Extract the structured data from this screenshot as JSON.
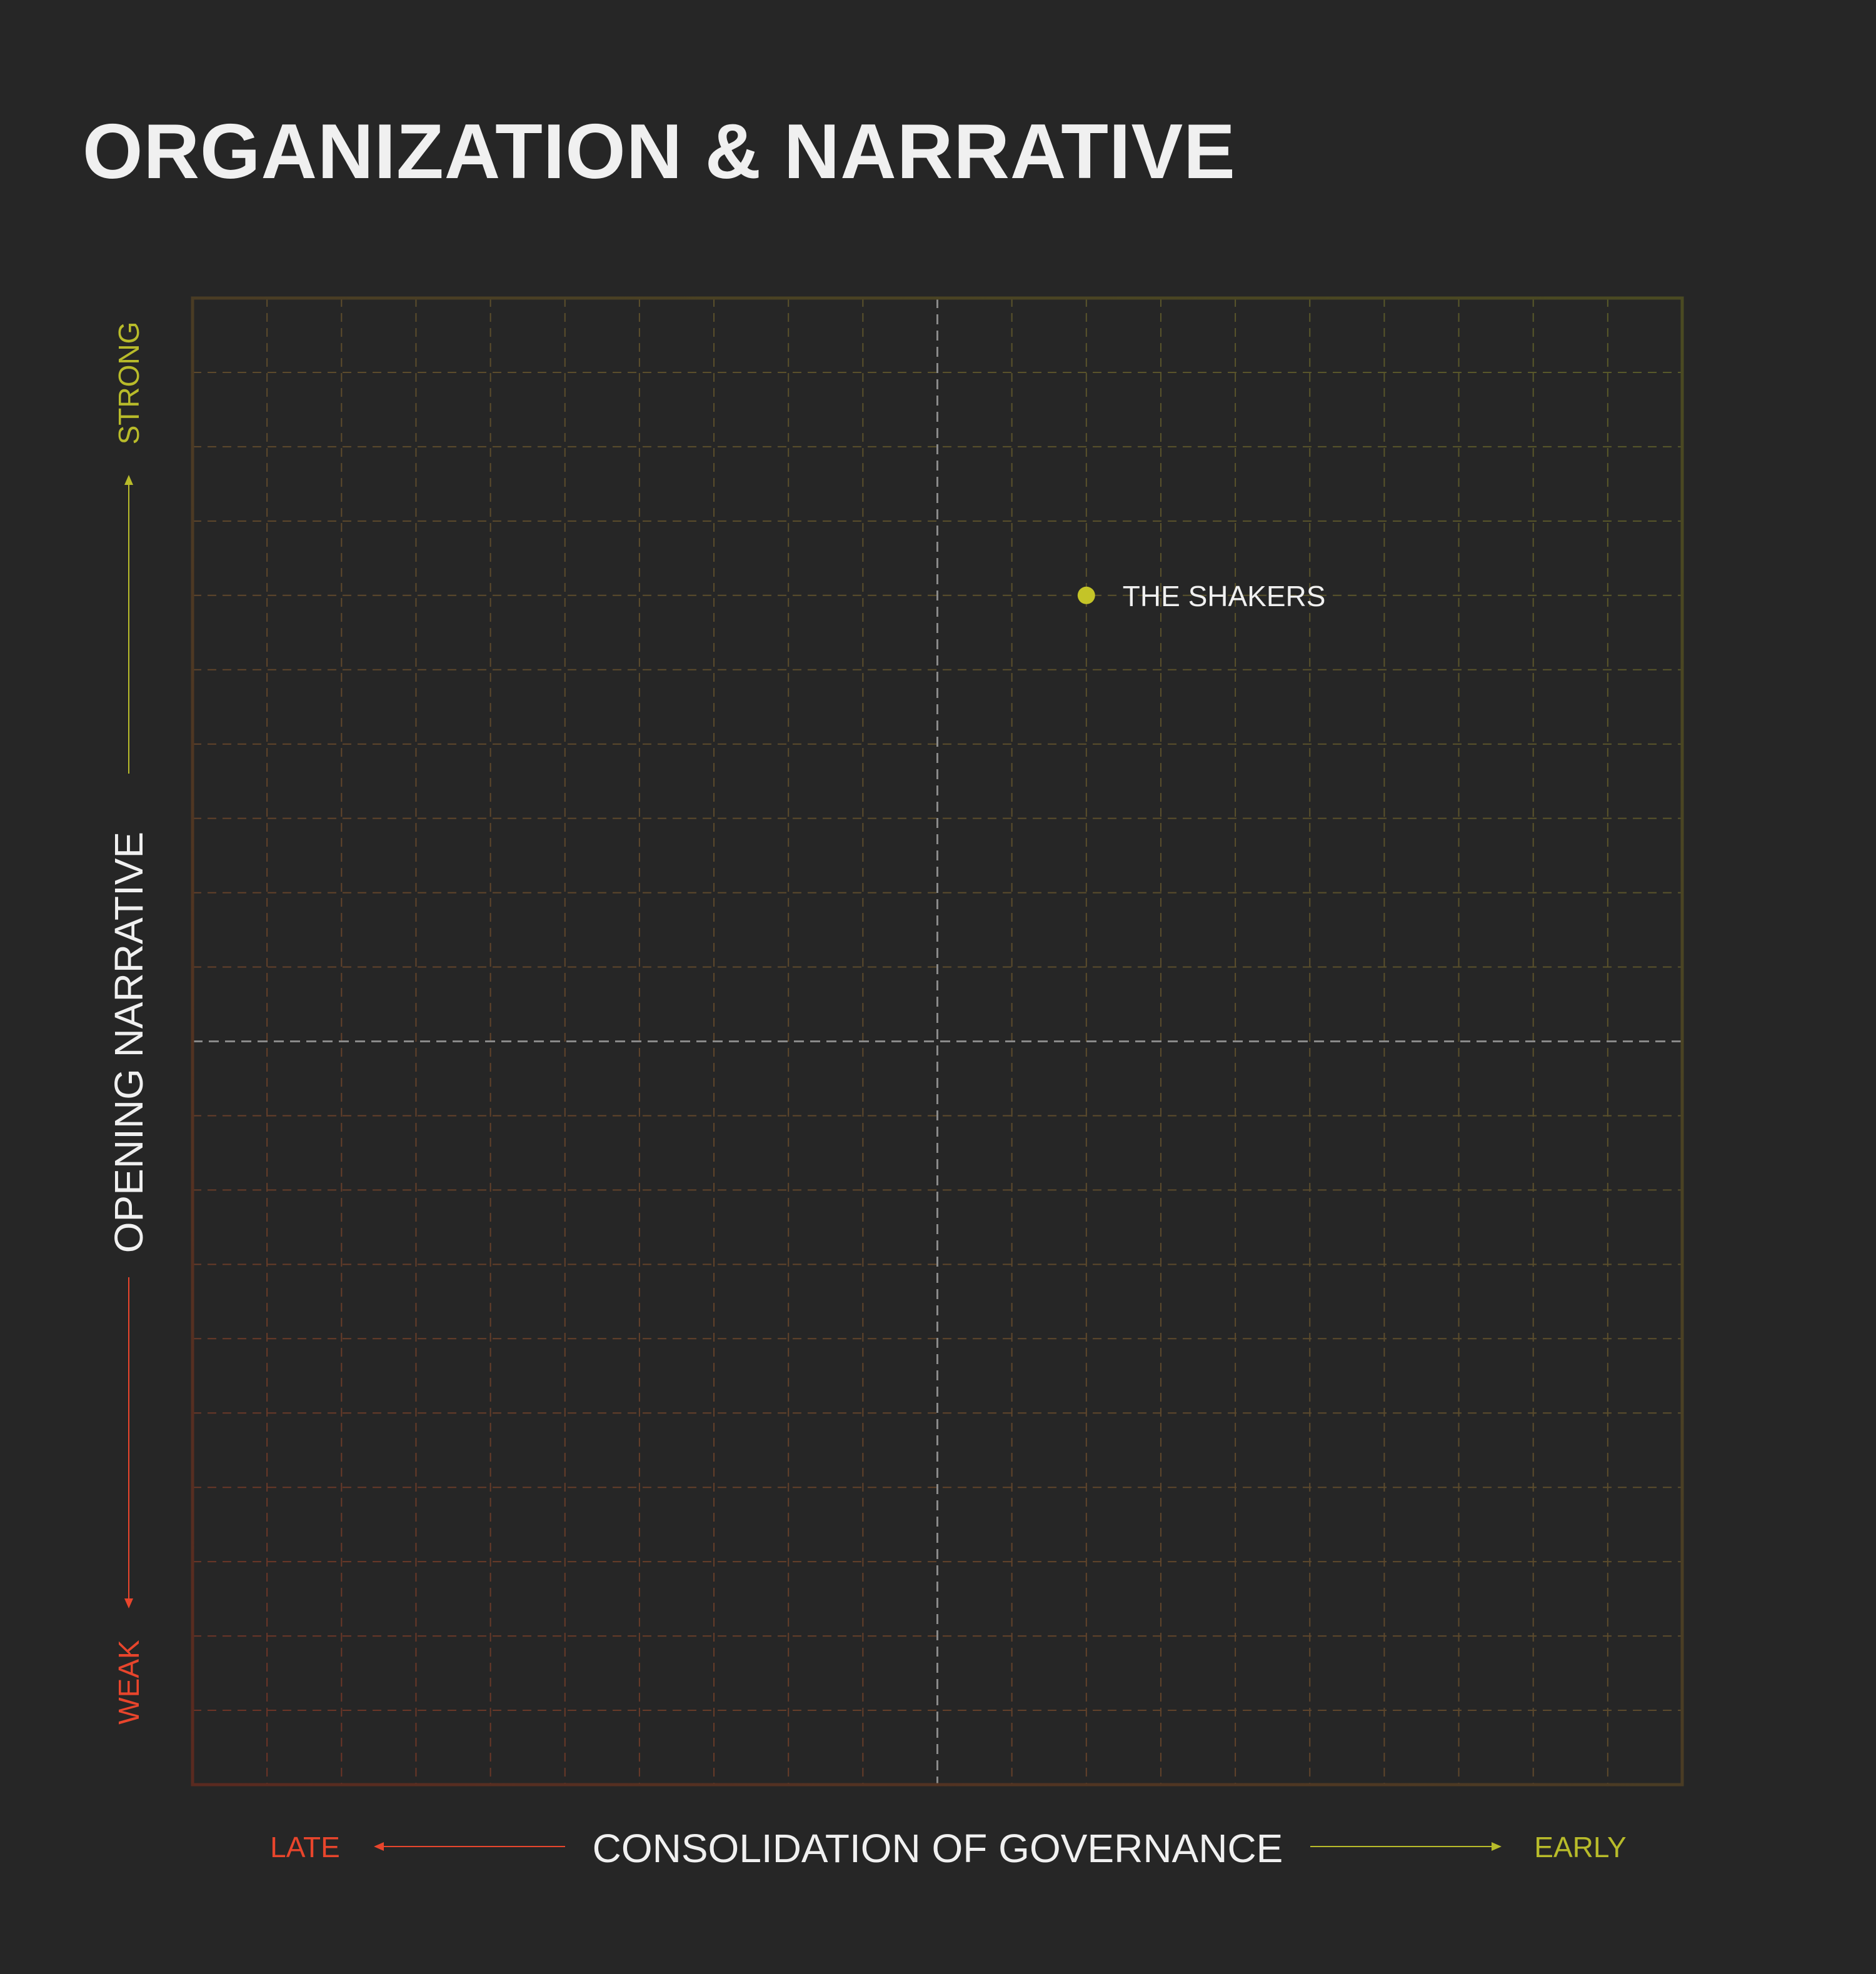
{
  "chart_data": {
    "type": "scatter",
    "title": "ORGANIZATION & NARRATIVE",
    "xlabel": "CONSOLIDATION OF GOVERNANCE",
    "ylabel": "OPENING NARRATIVE",
    "x_low_label": "LATE",
    "x_high_label": "EARLY",
    "y_low_label": "WEAK",
    "y_high_label": "STRONG",
    "xlim": [
      -10,
      10
    ],
    "ylim": [
      -10,
      10
    ],
    "grid": true,
    "points": [
      {
        "label": "THE SHAKERS",
        "x": 2,
        "y": 6
      }
    ],
    "colors": {
      "background": "#262626",
      "weak": "#e8452c",
      "strong": "#b8bb2a",
      "point": "#c4c428",
      "text": "#f0f0f0",
      "center_line": "#8a8a8a"
    }
  }
}
